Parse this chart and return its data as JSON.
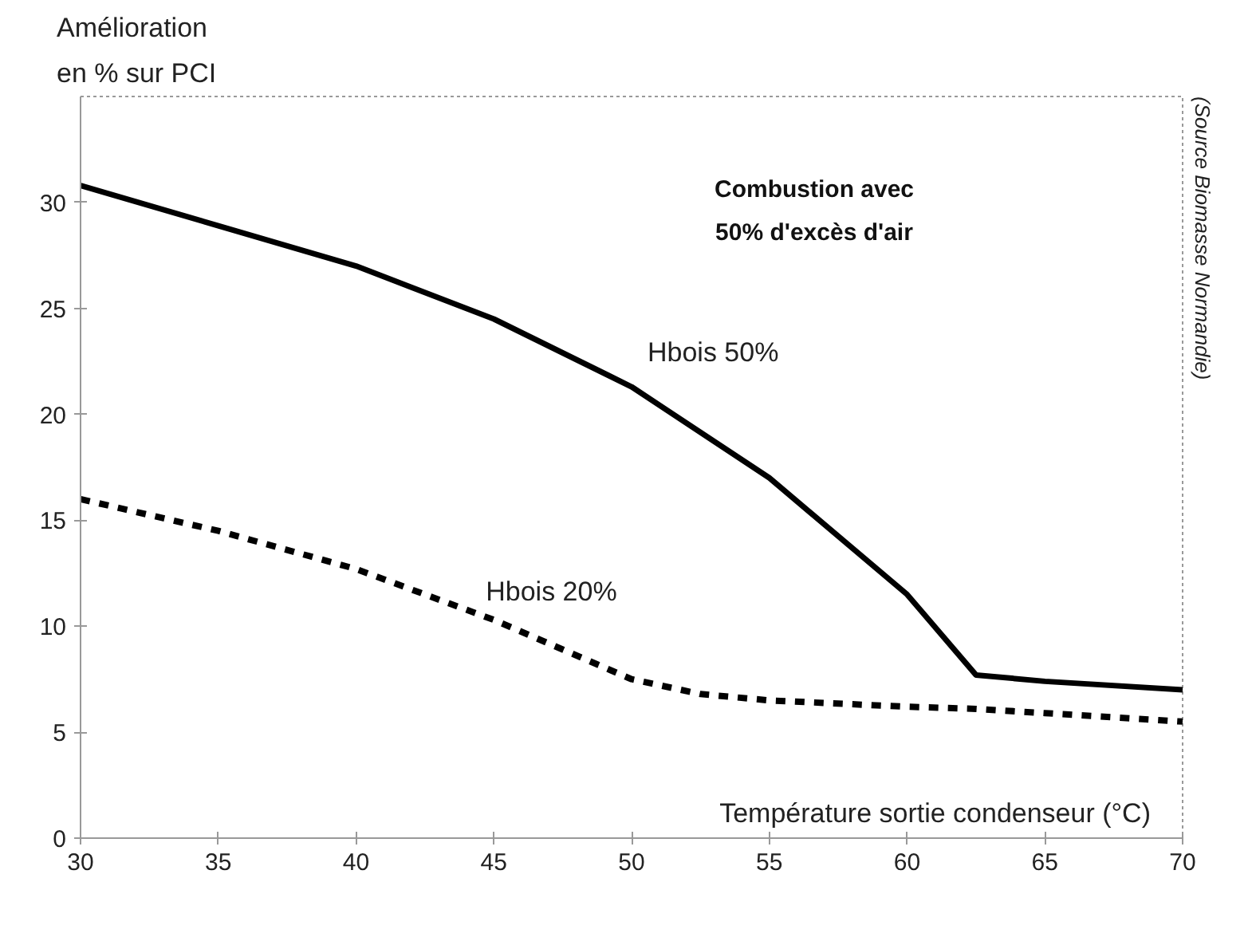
{
  "chart_data": {
    "type": "line",
    "xlabel": "Température sortie condenseur (°C)",
    "ylabel": "Amélioration\nen % sur PCI",
    "annotations": [
      "Combustion avec\n50% d'excès d'air",
      "(Source Biomasse Normandie)"
    ],
    "xlim": [
      30,
      70
    ],
    "xticks": [
      30,
      35,
      40,
      45,
      50,
      55,
      60,
      65,
      70
    ],
    "ylim": [
      0,
      35
    ],
    "yticks": [
      0,
      5,
      10,
      15,
      20,
      25,
      30
    ],
    "grid": false,
    "legend": false,
    "marker": "none",
    "series": [
      {
        "name": "Hbois 50%",
        "color": "#000000",
        "line_style": "solid",
        "x": [
          30,
          35,
          40,
          45,
          50,
          55,
          60,
          62.5,
          65,
          70
        ],
        "values": [
          30.8,
          28.9,
          27.0,
          24.5,
          21.3,
          17.0,
          11.5,
          7.7,
          7.4,
          7.0
        ]
      },
      {
        "name": "Hbois 20%",
        "color": "#000000",
        "line_style": "dashed",
        "x": [
          30,
          35,
          40,
          45,
          50,
          52.5,
          55,
          60,
          62.5,
          65,
          70
        ],
        "values": [
          16.0,
          14.5,
          12.7,
          10.3,
          7.5,
          6.8,
          6.5,
          6.2,
          6.1,
          5.9,
          5.5
        ]
      }
    ]
  }
}
